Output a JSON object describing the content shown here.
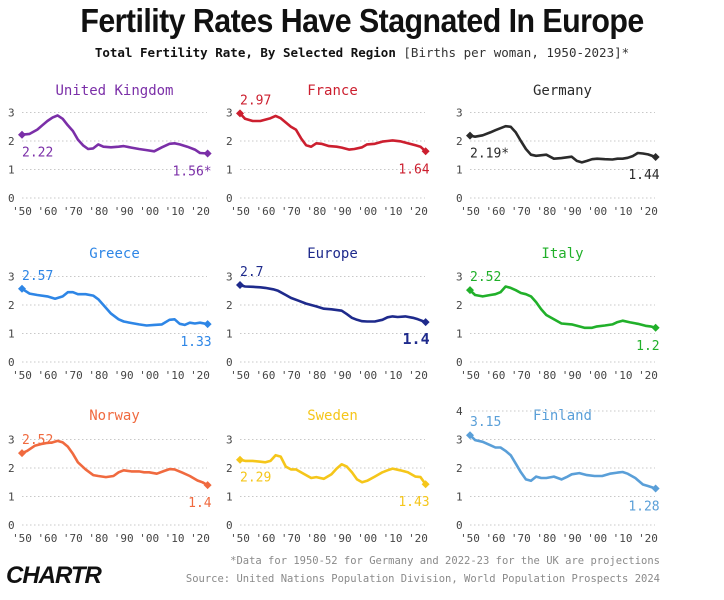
{
  "header": {
    "title": "Fertility Rates Have Stagnated In Europe",
    "subtitle_bold": "Total Fertility Rate, By Selected Region",
    "subtitle_light": "[Births per woman, 1950-2023]*"
  },
  "footer": {
    "footnote": "*Data for 1950-52 for Germany and 2022-23 for the UK are projections",
    "source": "Source: United Nations Population Division, World Population Prospects 2024",
    "logo": "CHARTR"
  },
  "chart_data": [
    {
      "type": "line",
      "title": "United Kingdom",
      "color": "#7b2fa8",
      "start_label": "2.22",
      "end_label": "1.56*",
      "ylim": [
        0,
        3
      ],
      "yticks": [
        0,
        1,
        2,
        3
      ],
      "xticks": [
        "'50",
        "'60",
        "'70",
        "'80",
        "'90",
        "'00",
        "'10",
        "'20"
      ],
      "x": [
        1950,
        1953,
        1956,
        1958,
        1960,
        1962,
        1964,
        1966,
        1968,
        1970,
        1972,
        1974,
        1976,
        1978,
        1980,
        1982,
        1985,
        1988,
        1990,
        1993,
        1996,
        1999,
        2002,
        2005,
        2008,
        2010,
        2012,
        2015,
        2018,
        2020,
        2023
      ],
      "y": [
        2.22,
        2.25,
        2.4,
        2.55,
        2.7,
        2.82,
        2.9,
        2.78,
        2.55,
        2.35,
        2.05,
        1.85,
        1.72,
        1.74,
        1.88,
        1.8,
        1.78,
        1.8,
        1.82,
        1.77,
        1.72,
        1.68,
        1.64,
        1.78,
        1.9,
        1.92,
        1.88,
        1.8,
        1.7,
        1.58,
        1.56
      ]
    },
    {
      "type": "line",
      "title": "France",
      "color": "#cc1f2f",
      "start_label": "2.97",
      "end_label": "1.64",
      "ylim": [
        0,
        3
      ],
      "yticks": [
        0,
        1,
        2,
        3
      ],
      "xticks": [
        "'50",
        "'60",
        "'70",
        "'80",
        "'90",
        "'00",
        "'10",
        "'20"
      ],
      "x": [
        1950,
        1952,
        1955,
        1958,
        1960,
        1962,
        1964,
        1966,
        1968,
        1970,
        1972,
        1974,
        1976,
        1978,
        1980,
        1982,
        1985,
        1988,
        1990,
        1993,
        1995,
        1998,
        2000,
        2003,
        2006,
        2008,
        2010,
        2013,
        2016,
        2019,
        2021,
        2023
      ],
      "y": [
        2.97,
        2.78,
        2.7,
        2.7,
        2.75,
        2.8,
        2.88,
        2.8,
        2.65,
        2.5,
        2.4,
        2.1,
        1.85,
        1.8,
        1.92,
        1.9,
        1.82,
        1.8,
        1.77,
        1.7,
        1.72,
        1.78,
        1.88,
        1.9,
        1.98,
        2.0,
        2.02,
        1.99,
        1.92,
        1.85,
        1.8,
        1.64
      ]
    },
    {
      "type": "line",
      "title": "Germany",
      "color": "#2b2b2b",
      "start_label": "2.19*",
      "end_label": "1.44",
      "ylim": [
        0,
        3
      ],
      "yticks": [
        0,
        1,
        2,
        3
      ],
      "xticks": [
        "'50",
        "'60",
        "'70",
        "'80",
        "'90",
        "'00",
        "'10",
        "'20"
      ],
      "x": [
        1950,
        1952,
        1955,
        1958,
        1960,
        1962,
        1964,
        1966,
        1968,
        1970,
        1972,
        1974,
        1976,
        1980,
        1983,
        1986,
        1990,
        1992,
        1994,
        1996,
        1998,
        2000,
        2003,
        2006,
        2008,
        2010,
        2012,
        2014,
        2016,
        2018,
        2020,
        2023
      ],
      "y": [
        2.19,
        2.15,
        2.2,
        2.3,
        2.38,
        2.45,
        2.52,
        2.5,
        2.3,
        2.0,
        1.72,
        1.52,
        1.48,
        1.52,
        1.38,
        1.4,
        1.45,
        1.3,
        1.25,
        1.3,
        1.36,
        1.38,
        1.36,
        1.35,
        1.38,
        1.38,
        1.41,
        1.47,
        1.58,
        1.56,
        1.53,
        1.44
      ]
    },
    {
      "type": "line",
      "title": "Greece",
      "color": "#2e86e6",
      "start_label": "2.57",
      "end_label": "1.33",
      "ylim": [
        0,
        3
      ],
      "yticks": [
        0,
        1,
        2,
        3
      ],
      "xticks": [
        "'50",
        "'60",
        "'70",
        "'80",
        "'90",
        "'00",
        "'10",
        "'20"
      ],
      "x": [
        1950,
        1953,
        1956,
        1960,
        1963,
        1966,
        1968,
        1970,
        1972,
        1975,
        1978,
        1980,
        1982,
        1985,
        1988,
        1990,
        1993,
        1996,
        1999,
        2002,
        2005,
        2008,
        2010,
        2012,
        2014,
        2016,
        2018,
        2020,
        2023
      ],
      "y": [
        2.57,
        2.4,
        2.35,
        2.3,
        2.22,
        2.3,
        2.45,
        2.45,
        2.38,
        2.38,
        2.33,
        2.2,
        2.0,
        1.7,
        1.5,
        1.42,
        1.37,
        1.32,
        1.28,
        1.3,
        1.32,
        1.48,
        1.5,
        1.34,
        1.3,
        1.38,
        1.35,
        1.38,
        1.33
      ]
    },
    {
      "type": "line",
      "title": "Europe",
      "color": "#1e2a8c",
      "start_label": "2.7",
      "end_label": "1.4",
      "ylim": [
        0,
        3
      ],
      "yticks": [
        0,
        1,
        2,
        3
      ],
      "xticks": [
        "'50",
        "'60",
        "'70",
        "'80",
        "'90",
        "'00",
        "'10",
        "'20"
      ],
      "x": [
        1950,
        1952,
        1955,
        1958,
        1960,
        1963,
        1965,
        1968,
        1970,
        1973,
        1976,
        1980,
        1983,
        1986,
        1990,
        1992,
        1994,
        1996,
        1998,
        2000,
        2003,
        2006,
        2008,
        2010,
        2012,
        2015,
        2018,
        2020,
        2023
      ],
      "y": [
        2.7,
        2.65,
        2.64,
        2.62,
        2.6,
        2.55,
        2.5,
        2.35,
        2.25,
        2.15,
        2.05,
        1.95,
        1.87,
        1.85,
        1.8,
        1.68,
        1.55,
        1.48,
        1.43,
        1.42,
        1.42,
        1.48,
        1.57,
        1.6,
        1.58,
        1.6,
        1.55,
        1.5,
        1.4
      ]
    },
    {
      "type": "line",
      "title": "Italy",
      "color": "#21b02a",
      "start_label": "2.52",
      "end_label": "1.2",
      "ylim": [
        0,
        3
      ],
      "yticks": [
        0,
        1,
        2,
        3
      ],
      "xticks": [
        "'50",
        "'60",
        "'70",
        "'80",
        "'90",
        "'00",
        "'10",
        "'20"
      ],
      "x": [
        1950,
        1952,
        1955,
        1958,
        1960,
        1962,
        1964,
        1966,
        1968,
        1970,
        1972,
        1974,
        1976,
        1978,
        1980,
        1983,
        1986,
        1990,
        1993,
        1995,
        1998,
        2000,
        2003,
        2006,
        2008,
        2010,
        2013,
        2016,
        2019,
        2021,
        2023
      ],
      "y": [
        2.52,
        2.35,
        2.3,
        2.35,
        2.38,
        2.45,
        2.65,
        2.6,
        2.52,
        2.42,
        2.38,
        2.3,
        2.1,
        1.85,
        1.65,
        1.5,
        1.35,
        1.32,
        1.25,
        1.2,
        1.2,
        1.25,
        1.28,
        1.32,
        1.4,
        1.45,
        1.39,
        1.34,
        1.27,
        1.25,
        1.2
      ]
    },
    {
      "type": "line",
      "title": "Norway",
      "color": "#f06a3f",
      "start_label": "2.52",
      "end_label": "1.4",
      "ylim": [
        0,
        3
      ],
      "yticks": [
        0,
        1,
        2,
        3
      ],
      "xticks": [
        "'50",
        "'60",
        "'70",
        "'80",
        "'90",
        "'00",
        "'10",
        "'20"
      ],
      "x": [
        1950,
        1952,
        1955,
        1958,
        1960,
        1962,
        1964,
        1966,
        1968,
        1970,
        1972,
        1975,
        1978,
        1980,
        1983,
        1986,
        1988,
        1990,
        1993,
        1996,
        1998,
        2000,
        2003,
        2006,
        2008,
        2010,
        2013,
        2016,
        2019,
        2021,
        2023
      ],
      "y": [
        2.52,
        2.6,
        2.78,
        2.85,
        2.88,
        2.9,
        2.95,
        2.9,
        2.75,
        2.5,
        2.2,
        1.95,
        1.75,
        1.72,
        1.68,
        1.72,
        1.85,
        1.92,
        1.88,
        1.88,
        1.85,
        1.85,
        1.8,
        1.9,
        1.96,
        1.95,
        1.84,
        1.72,
        1.56,
        1.5,
        1.4
      ]
    },
    {
      "type": "line",
      "title": "Sweden",
      "color": "#f5c61a",
      "start_label": "2.29",
      "end_label": "1.43",
      "ylim": [
        0,
        3
      ],
      "yticks": [
        0,
        1,
        2,
        3
      ],
      "xticks": [
        "'50",
        "'60",
        "'70",
        "'80",
        "'90",
        "'00",
        "'10",
        "'20"
      ],
      "x": [
        1950,
        1952,
        1955,
        1958,
        1960,
        1962,
        1964,
        1966,
        1968,
        1970,
        1972,
        1975,
        1978,
        1980,
        1983,
        1986,
        1988,
        1990,
        1992,
        1994,
        1996,
        1998,
        2000,
        2003,
        2006,
        2008,
        2010,
        2013,
        2016,
        2019,
        2021,
        2023
      ],
      "y": [
        2.29,
        2.25,
        2.25,
        2.22,
        2.2,
        2.25,
        2.45,
        2.4,
        2.05,
        1.95,
        1.95,
        1.8,
        1.65,
        1.68,
        1.62,
        1.78,
        1.98,
        2.13,
        2.05,
        1.85,
        1.6,
        1.5,
        1.55,
        1.7,
        1.85,
        1.92,
        1.98,
        1.92,
        1.85,
        1.7,
        1.68,
        1.43
      ]
    },
    {
      "type": "line",
      "title": "Finland",
      "color": "#5a9fd8",
      "start_label": "3.15",
      "end_label": "1.28",
      "ylim": [
        0,
        4
      ],
      "yticks": [
        0,
        1,
        2,
        3,
        4
      ],
      "xticks": [
        "'50",
        "'60",
        "'70",
        "'80",
        "'90",
        "'00",
        "'10",
        "'20"
      ],
      "x": [
        1950,
        1952,
        1955,
        1958,
        1960,
        1962,
        1964,
        1966,
        1968,
        1970,
        1972,
        1974,
        1976,
        1978,
        1980,
        1983,
        1986,
        1988,
        1990,
        1993,
        1996,
        1999,
        2002,
        2005,
        2008,
        2010,
        2012,
        2015,
        2018,
        2020,
        2023
      ],
      "y": [
        3.15,
        2.98,
        2.92,
        2.8,
        2.72,
        2.72,
        2.6,
        2.45,
        2.15,
        1.85,
        1.6,
        1.55,
        1.7,
        1.65,
        1.65,
        1.7,
        1.6,
        1.68,
        1.78,
        1.82,
        1.75,
        1.72,
        1.72,
        1.8,
        1.84,
        1.86,
        1.8,
        1.65,
        1.42,
        1.37,
        1.28
      ]
    }
  ]
}
